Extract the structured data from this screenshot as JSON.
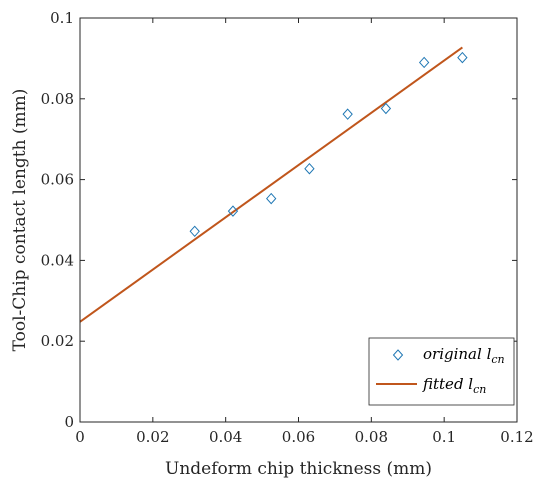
{
  "chart_data": {
    "type": "scatter",
    "xlabel": "Undeform chip thickness (mm)",
    "ylabel": "Tool-Chip contact length (mm)",
    "xlim": [
      0,
      0.12
    ],
    "ylim": [
      0,
      0.1
    ],
    "x_ticks": [
      "0",
      "0.02",
      "0.04",
      "0.06",
      "0.08",
      "0.1",
      "0.12"
    ],
    "y_ticks": [
      "0",
      "0.02",
      "0.04",
      "0.06",
      "0.08",
      "0.1"
    ],
    "grid": false,
    "legend_position": "bottom-right",
    "series": [
      {
        "name": "original l",
        "name_subscript": "cn",
        "kind": "markers",
        "marker": "diamond",
        "color": "#1f77b4",
        "points": [
          [
            0.0315,
            0.0472
          ],
          [
            0.042,
            0.0522
          ],
          [
            0.0525,
            0.0553
          ],
          [
            0.063,
            0.0627
          ],
          [
            0.0735,
            0.0762
          ],
          [
            0.084,
            0.0776
          ],
          [
            0.0945,
            0.089
          ],
          [
            0.105,
            0.0902
          ]
        ]
      },
      {
        "name": "fitted l",
        "name_subscript": "cn",
        "kind": "line",
        "color": "#c0561c",
        "points": [
          [
            0,
            0.0248
          ],
          [
            0.105,
            0.0927
          ]
        ]
      }
    ]
  }
}
